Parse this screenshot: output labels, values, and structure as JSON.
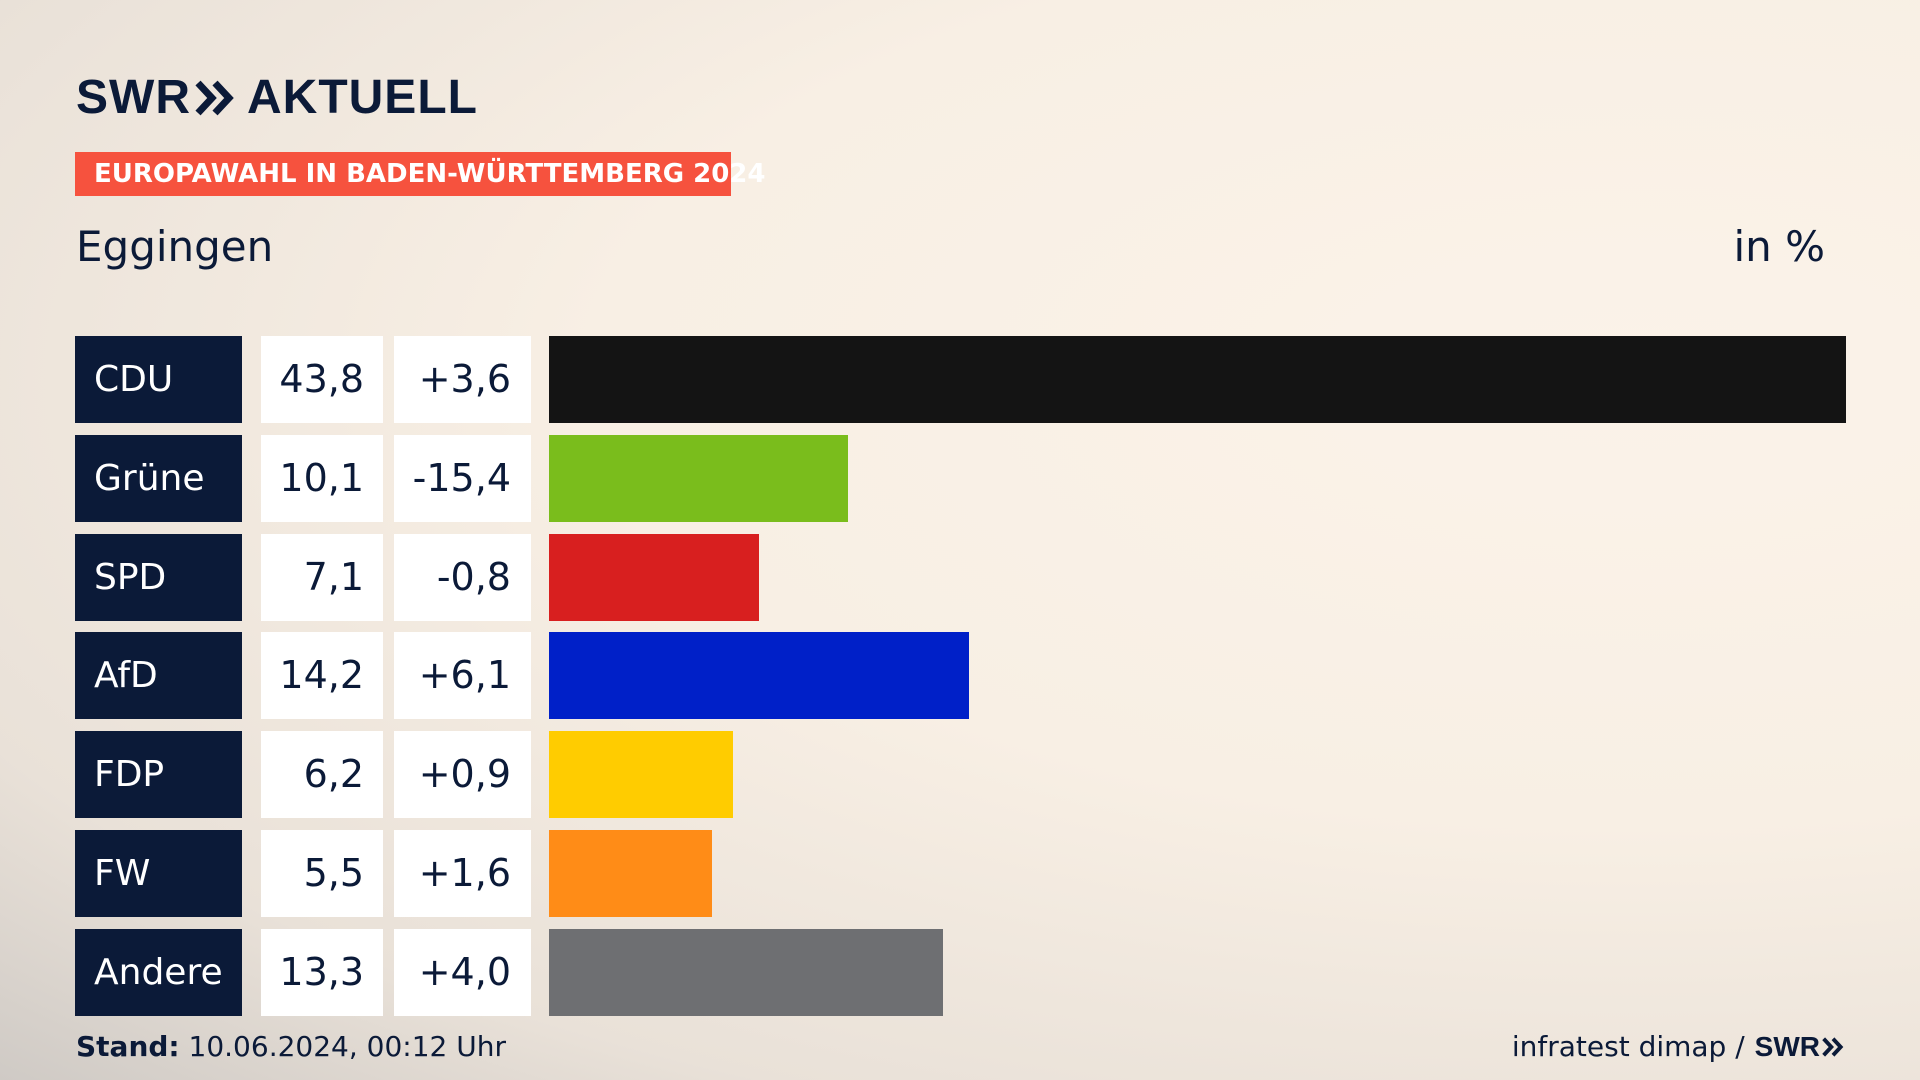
{
  "header": {
    "logo_text": "SWR",
    "product": "AKTUELL",
    "banner": "EUROPAWAHL IN BADEN-WÜRTTEMBERG 2024",
    "location": "Eggingen",
    "unit": "in %"
  },
  "chart_data": {
    "type": "bar",
    "categories": [
      "CDU",
      "Grüne",
      "SPD",
      "AfD",
      "FDP",
      "FW",
      "Andere"
    ],
    "values": [
      43.8,
      10.1,
      7.1,
      14.2,
      6.2,
      5.5,
      13.3
    ],
    "value_labels": [
      "43,8",
      "10,1",
      "7,1",
      "14,2",
      "6,2",
      "5,5",
      "13,3"
    ],
    "diff_labels": [
      "+3,6",
      "-15,4",
      "-0,8",
      "+6,1",
      "+0,9",
      "+1,6",
      "+4,0"
    ],
    "colors": [
      "#141414",
      "#7abd1c",
      "#d81f1f",
      "#0020c8",
      "#ffcc00",
      "#ff8c17",
      "#6e6f72"
    ],
    "orientation": "horizontal",
    "xlim": [
      0,
      43.8
    ]
  },
  "footer": {
    "stand_label": "Stand:",
    "stand_value": "10.06.2024, 00:12 Uhr",
    "source": "infratest dimap /",
    "source_logo": "SWR"
  },
  "colors": {
    "navy": "#0b1a38",
    "banner": "#f6523e"
  }
}
